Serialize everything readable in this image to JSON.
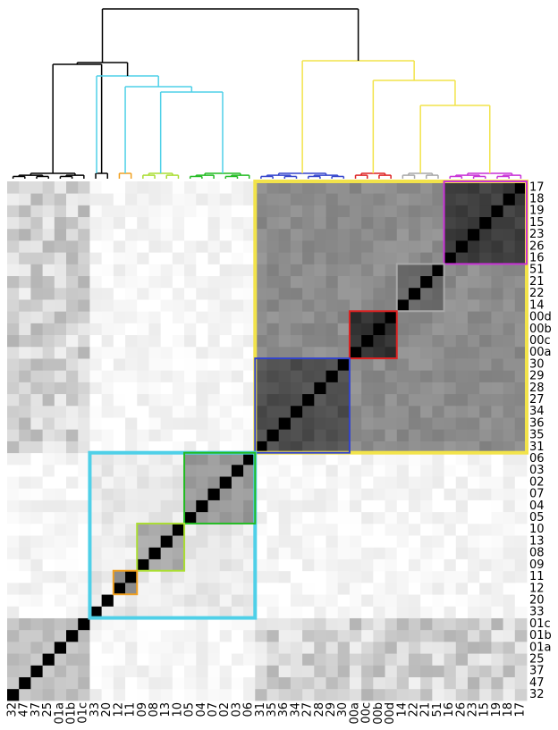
{
  "chart_data": {
    "type": "heatmap",
    "description_kind": "clustered similarity matrix with dendrogram",
    "labels": [
      "32",
      "47",
      "37",
      "25",
      "01a",
      "01b",
      "01c",
      "33",
      "20",
      "12",
      "11",
      "09",
      "08",
      "13",
      "10",
      "05",
      "04",
      "07",
      "02",
      "03",
      "06",
      "31",
      "35",
      "36",
      "34",
      "27",
      "28",
      "29",
      "30",
      "00a",
      "00c",
      "00b",
      "00d",
      "14",
      "22",
      "21",
      "51",
      "16",
      "26",
      "23",
      "15",
      "19",
      "18",
      "17"
    ],
    "colormap": "white-to-black (higher similarity = darker)",
    "diagonal_value": 1.0,
    "clusters": [
      {
        "color": "#f2e34a",
        "members": [
          "31",
          "35",
          "36",
          "34",
          "27",
          "28",
          "29",
          "30",
          "00a",
          "00c",
          "00b",
          "00d",
          "14",
          "22",
          "21",
          "51",
          "16",
          "26",
          "23",
          "15",
          "19",
          "18",
          "17"
        ],
        "within": 0.45
      },
      {
        "color": "#c832d6",
        "members": [
          "16",
          "26",
          "23",
          "15",
          "19",
          "18",
          "17"
        ],
        "within": 0.75
      },
      {
        "color": "#a8a8a8",
        "members": [
          "14",
          "22",
          "21",
          "51"
        ],
        "within": 0.6
      },
      {
        "color": "#dd2222",
        "members": [
          "00a",
          "00c",
          "00b",
          "00d"
        ],
        "within": 0.8
      },
      {
        "color": "#3344cc",
        "members": [
          "31",
          "35",
          "36",
          "34",
          "27",
          "28",
          "29",
          "30"
        ],
        "within": 0.68
      },
      {
        "color": "#4fd0e8",
        "members": [
          "33",
          "20",
          "12",
          "11",
          "09",
          "08",
          "13",
          "10",
          "05",
          "04",
          "07",
          "02",
          "03",
          "06"
        ],
        "within": 0.08
      },
      {
        "color": "#22bb22",
        "members": [
          "05",
          "04",
          "07",
          "02",
          "03",
          "06"
        ],
        "within": 0.4
      },
      {
        "color": "#aadd33",
        "members": [
          "09",
          "08",
          "13",
          "10"
        ],
        "within": 0.35
      },
      {
        "color": "#f0a020",
        "members": [
          "12",
          "11"
        ],
        "within": 0.45
      }
    ],
    "black_cluster": {
      "color": "#000000",
      "members": [
        "32",
        "47",
        "37",
        "25",
        "01a",
        "01b",
        "01c"
      ],
      "within": 0.25
    }
  }
}
